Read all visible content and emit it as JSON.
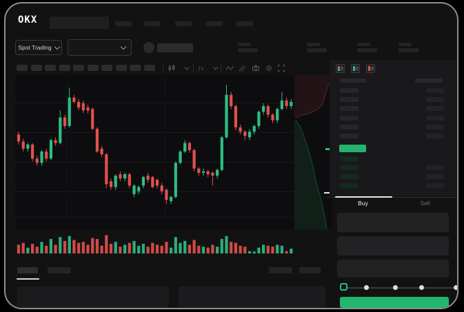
{
  "brand": {
    "logo_text": "OKX"
  },
  "header": {
    "nav_placeholder_count": 5
  },
  "market_bar": {
    "market_selector_label": "Spot Trading",
    "stat_placeholder_count": 4
  },
  "chart_toolbar": {
    "placeholder_count": 10,
    "icons": [
      "candles-icon",
      "chevron-down-icon",
      "indicators-icon",
      "chevron-down-icon",
      "trendline-icon",
      "parallel-channel-icon",
      "camera-icon",
      "settings-icon",
      "fullscreen-icon"
    ]
  },
  "chart_data": {
    "type": "candlestick+volume",
    "title": "",
    "x_axis": {
      "labels_visible": false
    },
    "y_axis": {
      "labels_visible": false,
      "range": [
        0,
        100
      ]
    },
    "grid": {
      "horizontal_lines": 5,
      "vertical_lines": 2
    },
    "candles": [
      [
        62,
        64,
        55,
        57
      ],
      [
        57,
        59,
        50,
        52
      ],
      [
        52,
        56,
        50,
        55
      ],
      [
        55,
        56,
        43,
        45
      ],
      [
        45,
        47,
        40,
        42
      ],
      [
        42,
        51,
        40,
        50
      ],
      [
        50,
        52,
        43,
        45
      ],
      [
        45,
        59,
        44,
        58
      ],
      [
        58,
        60,
        54,
        56
      ],
      [
        56,
        79,
        55,
        74
      ],
      [
        74,
        76,
        66,
        68
      ],
      [
        68,
        95,
        67,
        88
      ],
      [
        88,
        90,
        84,
        85
      ],
      [
        85,
        87,
        79,
        81
      ],
      [
        84,
        86,
        77,
        79
      ],
      [
        81,
        83,
        77,
        79
      ],
      [
        80,
        81,
        65,
        66
      ],
      [
        66,
        67,
        49,
        50
      ],
      [
        52,
        54,
        46,
        48
      ],
      [
        48,
        49,
        24,
        27
      ],
      [
        29,
        31,
        23,
        25
      ],
      [
        25,
        34,
        23,
        33
      ],
      [
        34,
        36,
        29,
        31
      ],
      [
        31,
        35,
        29,
        34
      ],
      [
        34,
        35,
        24,
        26
      ],
      [
        20,
        27,
        18,
        26
      ],
      [
        22,
        26,
        20,
        25
      ],
      [
        26,
        33,
        24,
        32
      ],
      [
        33,
        35,
        28,
        30
      ],
      [
        32,
        33,
        24,
        25
      ],
      [
        30,
        31,
        24,
        26
      ],
      [
        26,
        28,
        20,
        22
      ],
      [
        23,
        24,
        13,
        16
      ],
      [
        15,
        19,
        13,
        18
      ],
      [
        18,
        43,
        17,
        42
      ],
      [
        42,
        51,
        41,
        50
      ],
      [
        50,
        58,
        49,
        56
      ],
      [
        56,
        57,
        49,
        51
      ],
      [
        51,
        52,
        36,
        38
      ],
      [
        38,
        39,
        33,
        35
      ],
      [
        35,
        38,
        33,
        36
      ],
      [
        36,
        37,
        32,
        34
      ],
      [
        35,
        36,
        26,
        33
      ],
      [
        33,
        38,
        31,
        37
      ],
      [
        37,
        61,
        36,
        60
      ],
      [
        60,
        97,
        59,
        90
      ],
      [
        90,
        92,
        80,
        82
      ],
      [
        82,
        83,
        65,
        67
      ],
      [
        67,
        69,
        62,
        64
      ],
      [
        64,
        65,
        58,
        61
      ],
      [
        60,
        66,
        58,
        64
      ],
      [
        64,
        69,
        62,
        68
      ],
      [
        68,
        79,
        66,
        78
      ],
      [
        78,
        84,
        76,
        82
      ],
      [
        82,
        83,
        74,
        76
      ],
      [
        76,
        77,
        70,
        72
      ],
      [
        72,
        81,
        70,
        80
      ],
      [
        80,
        92,
        79,
        86
      ],
      [
        86,
        88,
        80,
        82
      ],
      [
        82,
        87,
        80,
        85
      ]
    ],
    "volume": [
      45,
      55,
      30,
      50,
      35,
      60,
      40,
      75,
      45,
      85,
      65,
      90,
      70,
      55,
      60,
      45,
      80,
      75,
      40,
      95,
      50,
      60,
      35,
      45,
      55,
      65,
      40,
      50,
      35,
      55,
      45,
      40,
      60,
      30,
      85,
      55,
      65,
      45,
      70,
      40,
      35,
      30,
      45,
      35,
      75,
      90,
      60,
      55,
      40,
      35,
      12,
      10,
      30,
      45,
      40,
      35,
      45,
      40,
      12,
      25
    ],
    "depth_overlay": {
      "asks_color": "#221316",
      "asks_edge": "#55292b",
      "bids_color": "#102019",
      "bids_edge": "#1f4a36",
      "asks_curve": [
        [
          55,
          3
        ],
        [
          48,
          18
        ],
        [
          44,
          30
        ],
        [
          41,
          42
        ],
        [
          36,
          48
        ],
        [
          29,
          52
        ],
        [
          18,
          57
        ],
        [
          10,
          58
        ],
        [
          2,
          62
        ]
      ],
      "bids_curve": [
        [
          2,
          66
        ],
        [
          8,
          74
        ],
        [
          12,
          84
        ],
        [
          16,
          96
        ],
        [
          20,
          108
        ],
        [
          24,
          122
        ],
        [
          28,
          136
        ],
        [
          30,
          150
        ],
        [
          34,
          164
        ],
        [
          38,
          178
        ],
        [
          41,
          192
        ],
        [
          44,
          206
        ],
        [
          46,
          218
        ],
        [
          47,
          224
        ]
      ],
      "last_price_tick_color": "#e9e9e9",
      "mid_tick_color": "#2ebd7a"
    }
  },
  "order_book": {
    "view_mode_icons": [
      "orderbook-combined-icon",
      "orderbook-bids-icon",
      "orderbook-asks-icon"
    ],
    "ask_row_count": 6,
    "bid_row_count": 4,
    "bid_rows_with_right_bar": 3,
    "last_price_bar_color": "#26b46d"
  },
  "trade_panel": {
    "tabs": [
      {
        "label": "Buy",
        "active": true
      },
      {
        "label": "Sell",
        "active": false
      }
    ],
    "input_placeholder_count": 3,
    "slider": {
      "stops": [
        0,
        25,
        50,
        75,
        100
      ],
      "value": 0,
      "accent": "#2ebd7a"
    },
    "submit_button_label": ""
  },
  "bottom_panel": {
    "tab_placeholder_count": 2,
    "right_placeholder_count": 2,
    "content_block_count": 2
  },
  "colors": {
    "up": "#2ebd85",
    "down": "#e2504c",
    "accent_green": "#24b56f"
  }
}
